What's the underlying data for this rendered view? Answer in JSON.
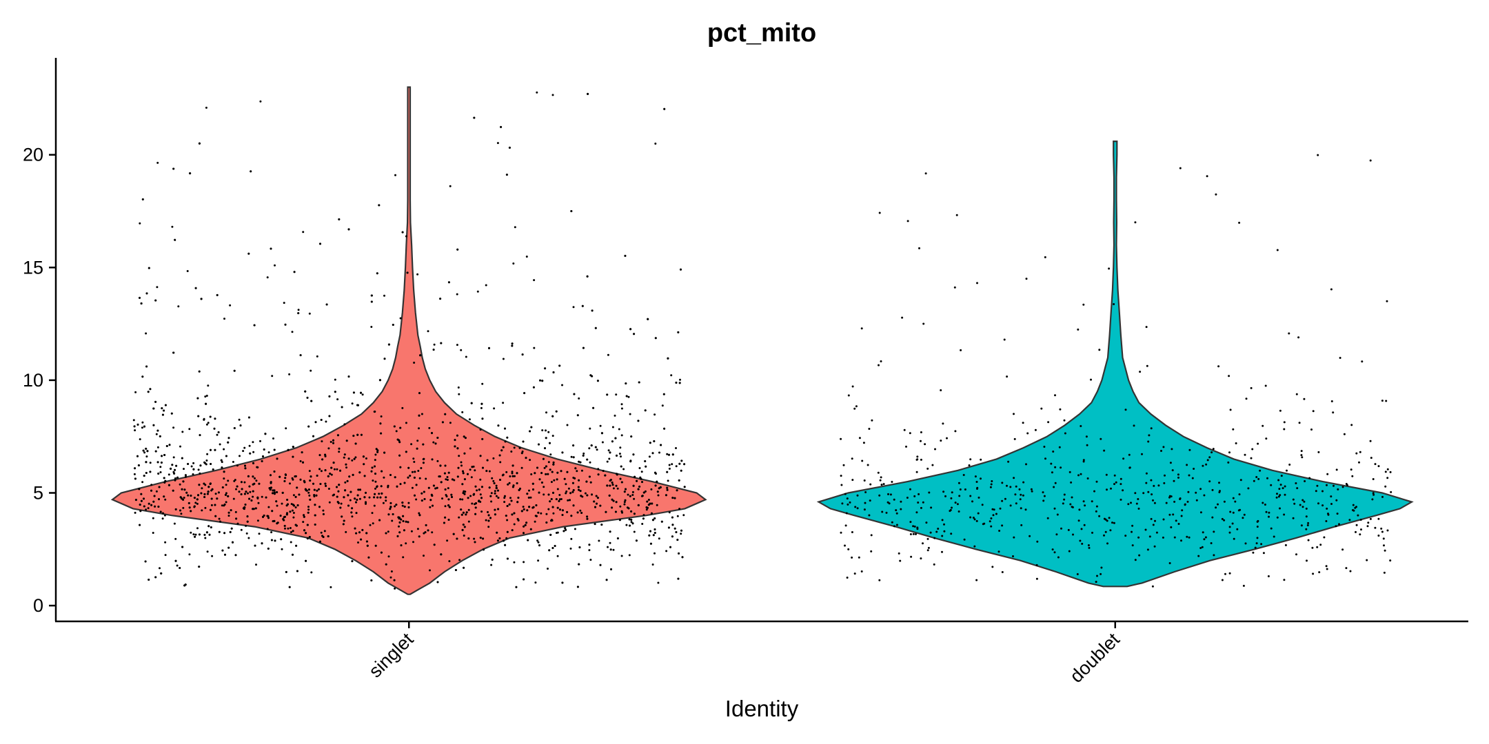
{
  "chart_data": {
    "type": "violin",
    "title": "pct_mito",
    "xlabel": "Identity",
    "ylabel": "",
    "ylim": [
      -0.7,
      24.3
    ],
    "yticks": [
      0,
      5,
      10,
      15,
      20
    ],
    "grid": false,
    "legend": "none",
    "categories": [
      "singlet",
      "doublet"
    ],
    "series": [
      {
        "category": "singlet",
        "color": "#F8766D",
        "min": 0.5,
        "max": 23.0,
        "density": [
          [
            0.5,
            0.0
          ],
          [
            0.7,
            0.03
          ],
          [
            1.0,
            0.07
          ],
          [
            1.5,
            0.12
          ],
          [
            2.0,
            0.18
          ],
          [
            2.5,
            0.25
          ],
          [
            3.0,
            0.34
          ],
          [
            3.5,
            0.52
          ],
          [
            4.0,
            0.8
          ],
          [
            4.3,
            0.93
          ],
          [
            4.7,
            1.0
          ],
          [
            5.0,
            0.97
          ],
          [
            5.5,
            0.82
          ],
          [
            6.0,
            0.65
          ],
          [
            6.5,
            0.5
          ],
          [
            7.0,
            0.38
          ],
          [
            7.5,
            0.29
          ],
          [
            8.0,
            0.22
          ],
          [
            8.5,
            0.16
          ],
          [
            9.0,
            0.12
          ],
          [
            9.5,
            0.09
          ],
          [
            10.0,
            0.07
          ],
          [
            10.5,
            0.055
          ],
          [
            11.0,
            0.045
          ],
          [
            11.5,
            0.038
          ],
          [
            12.0,
            0.03
          ],
          [
            13.0,
            0.022
          ],
          [
            14.0,
            0.016
          ],
          [
            15.0,
            0.012
          ],
          [
            16.0,
            0.009
          ],
          [
            17.0,
            0.005
          ],
          [
            18.0,
            0.004
          ],
          [
            20.0,
            0.004
          ],
          [
            22.0,
            0.003
          ],
          [
            23.0,
            0.0
          ]
        ],
        "points_sample_count": 2600
      },
      {
        "category": "doublet",
        "color": "#00BFC4",
        "min": 0.85,
        "max": 20.6,
        "density": [
          [
            0.85,
            0.04
          ],
          [
            1.0,
            0.09
          ],
          [
            1.5,
            0.2
          ],
          [
            2.0,
            0.32
          ],
          [
            2.5,
            0.47
          ],
          [
            3.0,
            0.61
          ],
          [
            3.5,
            0.74
          ],
          [
            4.0,
            0.88
          ],
          [
            4.3,
            0.96
          ],
          [
            4.6,
            1.0
          ],
          [
            5.0,
            0.9
          ],
          [
            5.5,
            0.7
          ],
          [
            6.0,
            0.53
          ],
          [
            6.5,
            0.4
          ],
          [
            7.0,
            0.31
          ],
          [
            7.5,
            0.23
          ],
          [
            8.0,
            0.17
          ],
          [
            8.5,
            0.12
          ],
          [
            9.0,
            0.08
          ],
          [
            9.5,
            0.06
          ],
          [
            10.0,
            0.045
          ],
          [
            11.0,
            0.025
          ],
          [
            12.0,
            0.019
          ],
          [
            13.0,
            0.014
          ],
          [
            14.0,
            0.009
          ],
          [
            15.0,
            0.006
          ],
          [
            16.0,
            0.003
          ],
          [
            17.0,
            0.005
          ],
          [
            18.0,
            0.003
          ],
          [
            19.0,
            0.004
          ],
          [
            20.0,
            0.006
          ],
          [
            20.6,
            0.006
          ]
        ],
        "points_sample_count": 650
      }
    ]
  }
}
